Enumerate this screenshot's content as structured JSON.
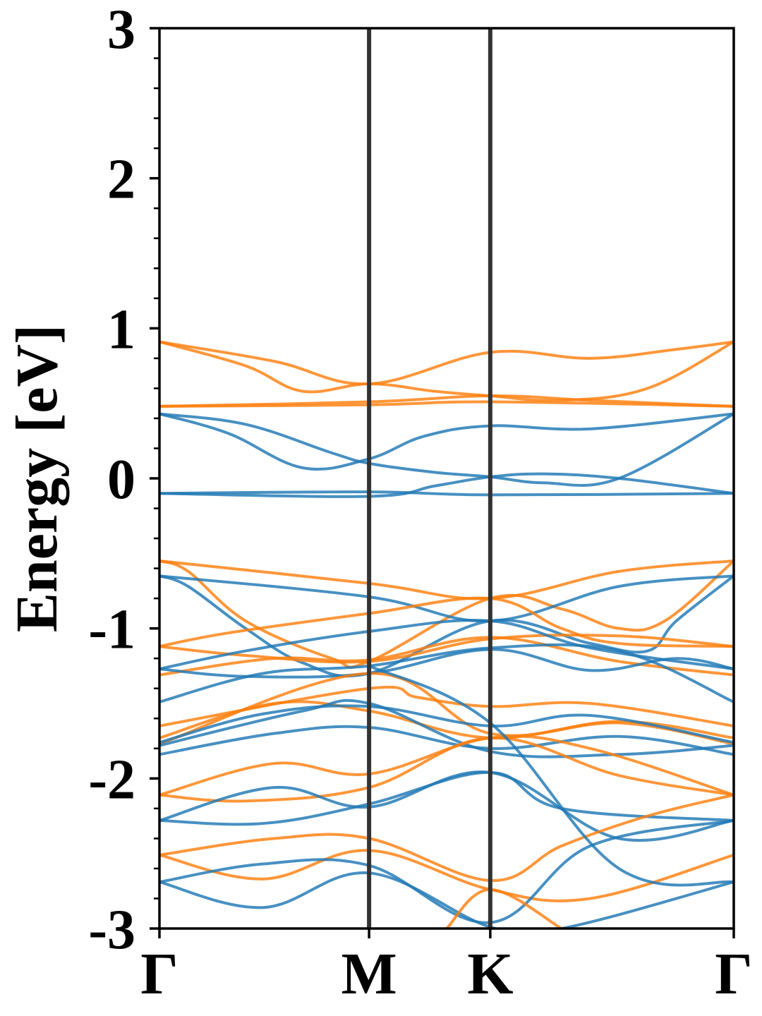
{
  "chart_data": {
    "type": "line",
    "title": "",
    "xlabel": "",
    "ylabel": "Energy [eV]",
    "ylim": [
      -3,
      3
    ],
    "yticks": [
      -3,
      -2,
      -1,
      0,
      1,
      2,
      3
    ],
    "ytick_labels": [
      "-3",
      "-2",
      "-1",
      "0",
      "1",
      "2",
      "3"
    ],
    "minor_ytick_step": 0.2,
    "x_range": [
      0,
      1
    ],
    "kpoints": [
      {
        "label": "Γ",
        "x": 0.0
      },
      {
        "label": "M",
        "x": 0.365
      },
      {
        "label": "K",
        "x": 0.576
      },
      {
        "label": "Γ",
        "x": 1.0
      }
    ],
    "grid": false,
    "legend": "none",
    "colors": {
      "spin_up": "#1f77b4",
      "spin_down": "#ff7f0e",
      "kpath_lines": "#333333"
    },
    "series": [
      {
        "group": "spin_down",
        "x": [
          0,
          0.15,
          0.25,
          0.365,
          0.48,
          0.576,
          0.7,
          0.85,
          1.0
        ],
        "y": [
          0.91,
          0.75,
          0.58,
          0.63,
          0.58,
          0.55,
          0.52,
          0.6,
          0.91
        ]
      },
      {
        "group": "spin_down",
        "x": [
          0,
          0.2,
          0.365,
          0.576,
          0.75,
          0.9,
          1.0
        ],
        "y": [
          0.91,
          0.78,
          0.63,
          0.84,
          0.8,
          0.86,
          0.91
        ]
      },
      {
        "group": "spin_down",
        "x": [
          0,
          0.365,
          0.576,
          0.75,
          1.0
        ],
        "y": [
          0.48,
          0.51,
          0.55,
          0.52,
          0.48
        ]
      },
      {
        "group": "spin_down",
        "x": [
          0,
          0.365,
          0.576,
          1.0
        ],
        "y": [
          0.48,
          0.49,
          0.51,
          0.48
        ]
      },
      {
        "group": "spin_up",
        "x": [
          0,
          0.12,
          0.25,
          0.365,
          0.46,
          0.576,
          0.75,
          1.0
        ],
        "y": [
          0.43,
          0.3,
          0.07,
          0.13,
          0.28,
          0.35,
          0.33,
          0.43
        ]
      },
      {
        "group": "spin_up",
        "x": [
          0,
          0.15,
          0.3,
          0.365,
          0.48,
          0.576,
          0.67,
          0.8,
          1.0
        ],
        "y": [
          0.43,
          0.36,
          0.17,
          0.1,
          0.04,
          0.01,
          -0.03,
          0.0,
          0.43
        ]
      },
      {
        "group": "spin_up",
        "x": [
          0,
          0.365,
          0.576,
          1.0
        ],
        "y": [
          -0.1,
          -0.09,
          -0.11,
          -0.1
        ]
      },
      {
        "group": "spin_up",
        "x": [
          0,
          0.365,
          0.48,
          0.576,
          0.67,
          0.8,
          1.0
        ],
        "y": [
          -0.1,
          -0.12,
          -0.05,
          0.01,
          0.03,
          0.0,
          -0.1
        ]
      },
      {
        "group": "spin_down",
        "x": [
          0,
          0.365,
          0.576,
          0.8,
          1.0
        ],
        "y": [
          -0.55,
          -0.7,
          -0.8,
          -0.62,
          -0.55
        ]
      },
      {
        "group": "spin_down",
        "x": [
          0,
          0.05,
          0.15,
          0.3,
          0.365,
          0.576,
          0.7,
          0.8,
          0.88,
          1.0
        ],
        "y": [
          -0.55,
          -0.62,
          -0.95,
          -1.2,
          -1.22,
          -0.8,
          -0.87,
          -1.0,
          -0.95,
          -0.55
        ]
      },
      {
        "group": "spin_up",
        "x": [
          0,
          0.365,
          0.576,
          0.8,
          1.0
        ],
        "y": [
          -0.65,
          -0.79,
          -0.95,
          -0.72,
          -0.65
        ]
      },
      {
        "group": "spin_up",
        "x": [
          0,
          0.05,
          0.15,
          0.25,
          0.365,
          0.576,
          0.75,
          0.85,
          0.9,
          1.0
        ],
        "y": [
          -0.65,
          -0.72,
          -1.0,
          -1.23,
          -1.3,
          -0.95,
          -1.1,
          -1.15,
          -0.95,
          -0.65
        ]
      },
      {
        "group": "spin_down",
        "x": [
          0,
          0.12,
          0.365,
          0.576,
          0.7,
          0.8,
          1.0
        ],
        "y": [
          -1.12,
          -1.03,
          -0.9,
          -0.8,
          -1.0,
          -1.1,
          -1.12
        ]
      },
      {
        "group": "spin_down",
        "x": [
          0,
          0.15,
          0.365,
          0.576,
          0.8,
          1.0
        ],
        "y": [
          -1.12,
          -1.18,
          -1.22,
          -1.07,
          -1.05,
          -1.12
        ]
      },
      {
        "group": "spin_down",
        "x": [
          0,
          0.2,
          0.365,
          0.576,
          0.8,
          1.0
        ],
        "y": [
          -1.31,
          -1.2,
          -1.21,
          -1.06,
          -1.22,
          -1.31
        ]
      },
      {
        "group": "spin_up",
        "x": [
          0,
          0.15,
          0.365,
          0.576,
          0.75,
          1.0
        ],
        "y": [
          -1.27,
          -1.15,
          -1.02,
          -0.95,
          -1.13,
          -1.27
        ]
      },
      {
        "group": "spin_up",
        "x": [
          0,
          0.15,
          0.365,
          0.576,
          0.75,
          0.9,
          1.0
        ],
        "y": [
          -1.27,
          -1.32,
          -1.3,
          -1.14,
          -1.28,
          -1.2,
          -1.27
        ]
      },
      {
        "group": "spin_up",
        "x": [
          0,
          0.18,
          0.365,
          0.576,
          0.8,
          1.0
        ],
        "y": [
          -1.49,
          -1.3,
          -1.25,
          -1.13,
          -1.15,
          -1.49
        ]
      },
      {
        "group": "spin_down",
        "x": [
          0,
          0.365,
          0.45,
          0.576,
          0.75,
          1.0
        ],
        "y": [
          -1.65,
          -1.4,
          -1.46,
          -1.52,
          -1.5,
          -1.65
        ]
      },
      {
        "group": "spin_down",
        "x": [
          0,
          0.2,
          0.365,
          0.576,
          0.8,
          1.0
        ],
        "y": [
          -1.73,
          -1.5,
          -1.55,
          -1.73,
          -1.62,
          -1.73
        ]
      },
      {
        "group": "spin_down",
        "x": [
          0,
          0.365,
          0.576,
          0.8,
          1.0
        ],
        "y": [
          -1.77,
          -1.3,
          -1.7,
          -1.63,
          -1.77
        ]
      },
      {
        "group": "spin_up",
        "x": [
          0,
          0.18,
          0.365,
          0.576,
          0.75,
          1.0
        ],
        "y": [
          -1.76,
          -1.57,
          -1.52,
          -1.65,
          -1.58,
          -1.76
        ]
      },
      {
        "group": "spin_up",
        "x": [
          0,
          0.2,
          0.365,
          0.576,
          0.8,
          1.0
        ],
        "y": [
          -1.84,
          -1.7,
          -1.66,
          -1.8,
          -1.72,
          -1.84
        ]
      },
      {
        "group": "spin_up",
        "x": [
          0,
          0.25,
          0.365,
          0.576,
          0.8,
          1.0
        ],
        "y": [
          -1.78,
          -1.55,
          -1.5,
          -1.82,
          -1.84,
          -1.78
        ]
      },
      {
        "group": "spin_down",
        "x": [
          0,
          0.2,
          0.365,
          0.576,
          0.75,
          1.0
        ],
        "y": [
          -2.11,
          -1.9,
          -1.97,
          -1.73,
          -1.8,
          -2.11
        ]
      },
      {
        "group": "spin_down",
        "x": [
          0,
          0.15,
          0.365,
          0.576,
          0.8,
          1.0
        ],
        "y": [
          -2.11,
          -2.15,
          -2.06,
          -1.73,
          -1.98,
          -2.11
        ]
      },
      {
        "group": "spin_up",
        "x": [
          0,
          0.2,
          0.365,
          0.576,
          0.8,
          1.0
        ],
        "y": [
          -2.28,
          -2.06,
          -2.19,
          -1.96,
          -2.4,
          -2.28
        ]
      },
      {
        "group": "spin_up",
        "x": [
          0,
          0.18,
          0.365,
          0.576,
          0.7,
          1.0
        ],
        "y": [
          -2.28,
          -2.3,
          -2.17,
          -1.96,
          -2.2,
          -2.28
        ]
      },
      {
        "group": "spin_down",
        "x": [
          0,
          0.2,
          0.365,
          0.576,
          0.7,
          0.85,
          1.0
        ],
        "y": [
          -2.51,
          -2.4,
          -2.4,
          -2.68,
          -2.45,
          -2.25,
          -2.11
        ]
      },
      {
        "group": "spin_down",
        "x": [
          0,
          0.18,
          0.365,
          0.576,
          0.75,
          1.0
        ],
        "y": [
          -2.51,
          -2.67,
          -2.48,
          -2.74,
          -2.8,
          -2.51
        ]
      },
      {
        "group": "spin_up",
        "x": [
          0,
          0.18,
          0.365,
          0.576,
          0.75,
          1.0
        ],
        "y": [
          -2.69,
          -2.57,
          -2.58,
          -2.96,
          -2.45,
          -2.28
        ]
      },
      {
        "group": "spin_up",
        "x": [
          0,
          0.18,
          0.365,
          0.576,
          0.7,
          1.0
        ],
        "y": [
          -2.69,
          -2.86,
          -2.63,
          -2.99,
          -3.0,
          -2.69
        ]
      },
      {
        "group": "spin_down",
        "x": [
          0.5,
          0.576,
          0.7
        ],
        "y": [
          -3.0,
          -2.74,
          -3.0
        ]
      },
      {
        "group": "spin_up",
        "x": [
          0.365,
          0.576,
          0.8,
          1.0
        ],
        "y": [
          -1.25,
          -1.63,
          -2.6,
          -2.69
        ]
      }
    ]
  }
}
